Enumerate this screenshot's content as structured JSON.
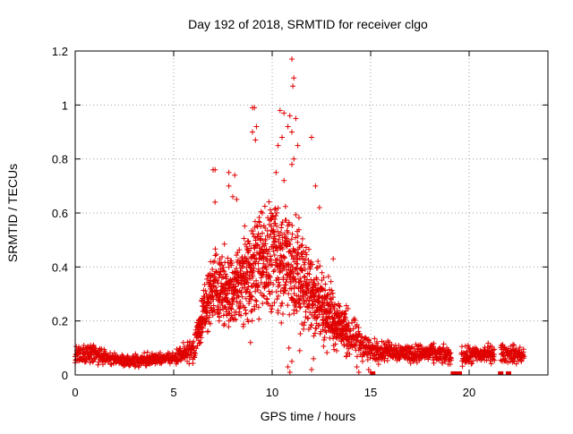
{
  "chart_data": {
    "type": "scatter",
    "title": "Day 192 of 2018, SRMTID for receiver clgo",
    "xlabel": "GPS time / hours",
    "ylabel": "SRMTID / TECUs",
    "xlim": [
      0,
      24
    ],
    "ylim": [
      0,
      1.2
    ],
    "xticks": [
      0,
      5,
      10,
      15,
      20
    ],
    "yticks": [
      0,
      0.2,
      0.4,
      0.6,
      0.8,
      1,
      1.2
    ],
    "xtick_labels": [
      "0",
      "5",
      "10",
      "15",
      "20"
    ],
    "ytick_labels": [
      "0",
      "0.2",
      "0.4",
      "0.6",
      "0.8",
      "1",
      "1.2"
    ],
    "grid": true,
    "marker": "+",
    "color": "#e00000",
    "series": [
      {
        "name": "SRMTID",
        "profile": [
          {
            "hour": 0.0,
            "mean": 0.07,
            "spread": 0.03
          },
          {
            "hour": 1.0,
            "mean": 0.08,
            "spread": 0.03
          },
          {
            "hour": 2.0,
            "mean": 0.06,
            "spread": 0.02
          },
          {
            "hour": 3.0,
            "mean": 0.05,
            "spread": 0.02
          },
          {
            "hour": 4.0,
            "mean": 0.06,
            "spread": 0.02
          },
          {
            "hour": 5.0,
            "mean": 0.06,
            "spread": 0.02
          },
          {
            "hour": 6.0,
            "mean": 0.1,
            "spread": 0.04
          },
          {
            "hour": 6.5,
            "mean": 0.22,
            "spread": 0.08
          },
          {
            "hour": 7.0,
            "mean": 0.33,
            "spread": 0.12
          },
          {
            "hour": 8.0,
            "mean": 0.3,
            "spread": 0.12
          },
          {
            "hour": 9.0,
            "mean": 0.4,
            "spread": 0.16
          },
          {
            "hour": 10.0,
            "mean": 0.45,
            "spread": 0.18
          },
          {
            "hour": 11.0,
            "mean": 0.4,
            "spread": 0.18
          },
          {
            "hour": 12.0,
            "mean": 0.3,
            "spread": 0.14
          },
          {
            "hour": 13.0,
            "mean": 0.22,
            "spread": 0.1
          },
          {
            "hour": 14.0,
            "mean": 0.14,
            "spread": 0.07
          },
          {
            "hour": 15.0,
            "mean": 0.09,
            "spread": 0.04
          },
          {
            "hour": 16.0,
            "mean": 0.09,
            "spread": 0.03
          },
          {
            "hour": 17.0,
            "mean": 0.08,
            "spread": 0.03
          },
          {
            "hour": 18.0,
            "mean": 0.08,
            "spread": 0.03
          },
          {
            "hour": 19.0,
            "mean": 0.07,
            "spread": 0.03
          },
          {
            "hour": 20.0,
            "mean": 0.07,
            "spread": 0.03
          },
          {
            "hour": 21.0,
            "mean": 0.08,
            "spread": 0.03
          },
          {
            "hour": 22.0,
            "mean": 0.08,
            "spread": 0.03
          },
          {
            "hour": 22.8,
            "mean": 0.07,
            "spread": 0.03
          }
        ],
        "gaps_hours": [
          [
            19.1,
            19.6
          ],
          [
            21.3,
            21.6
          ]
        ],
        "peaks": [
          {
            "x": 11.0,
            "y": 1.17
          },
          {
            "x": 11.1,
            "y": 1.1
          },
          {
            "x": 11.05,
            "y": 1.07
          },
          {
            "x": 9.1,
            "y": 0.99
          },
          {
            "x": 9.0,
            "y": 0.99
          },
          {
            "x": 10.4,
            "y": 0.98
          },
          {
            "x": 10.6,
            "y": 0.97
          },
          {
            "x": 10.9,
            "y": 0.96
          },
          {
            "x": 11.2,
            "y": 0.95
          },
          {
            "x": 9.2,
            "y": 0.92
          },
          {
            "x": 10.8,
            "y": 0.92
          },
          {
            "x": 9.0,
            "y": 0.9
          },
          {
            "x": 11.0,
            "y": 0.9
          },
          {
            "x": 9.15,
            "y": 0.87
          },
          {
            "x": 10.5,
            "y": 0.88
          },
          {
            "x": 12.0,
            "y": 0.88
          },
          {
            "x": 11.3,
            "y": 0.85
          },
          {
            "x": 10.3,
            "y": 0.85
          },
          {
            "x": 11.1,
            "y": 0.8
          },
          {
            "x": 11.0,
            "y": 0.78
          },
          {
            "x": 7.0,
            "y": 0.76
          },
          {
            "x": 7.1,
            "y": 0.76
          },
          {
            "x": 10.2,
            "y": 0.75
          },
          {
            "x": 8.1,
            "y": 0.74
          },
          {
            "x": 7.8,
            "y": 0.75
          },
          {
            "x": 10.6,
            "y": 0.72
          },
          {
            "x": 7.8,
            "y": 0.7
          },
          {
            "x": 12.2,
            "y": 0.7
          },
          {
            "x": 8.0,
            "y": 0.66
          },
          {
            "x": 8.2,
            "y": 0.65
          },
          {
            "x": 7.1,
            "y": 0.64
          },
          {
            "x": 12.4,
            "y": 0.62
          },
          {
            "x": 9.5,
            "y": 0.6
          },
          {
            "x": 13.1,
            "y": 0.43
          }
        ],
        "lows": [
          {
            "x": 10.8,
            "y": 0.03
          },
          {
            "x": 10.9,
            "y": 0.01
          },
          {
            "x": 11.0,
            "y": 0.05
          },
          {
            "x": 12.0,
            "y": 0.02
          },
          {
            "x": 12.1,
            "y": 0.06
          },
          {
            "x": 10.85,
            "y": 0.1
          },
          {
            "x": 14.3,
            "y": 0.03
          },
          {
            "x": 14.4,
            "y": 0.01
          },
          {
            "x": 15.0,
            "y": 0.01
          },
          {
            "x": 14.9,
            "y": 0.02
          },
          {
            "x": 8.9,
            "y": 0.12
          },
          {
            "x": 11.4,
            "y": 0.09
          }
        ],
        "baseline_markers": [
          {
            "x": 15.1,
            "y": 0.0
          },
          {
            "x": 19.2,
            "y": 0.0
          },
          {
            "x": 19.3,
            "y": 0.0
          },
          {
            "x": 19.4,
            "y": 0.0
          },
          {
            "x": 19.5,
            "y": 0.0
          },
          {
            "x": 21.6,
            "y": 0.0
          },
          {
            "x": 22.0,
            "y": 0.0
          }
        ]
      }
    ]
  }
}
